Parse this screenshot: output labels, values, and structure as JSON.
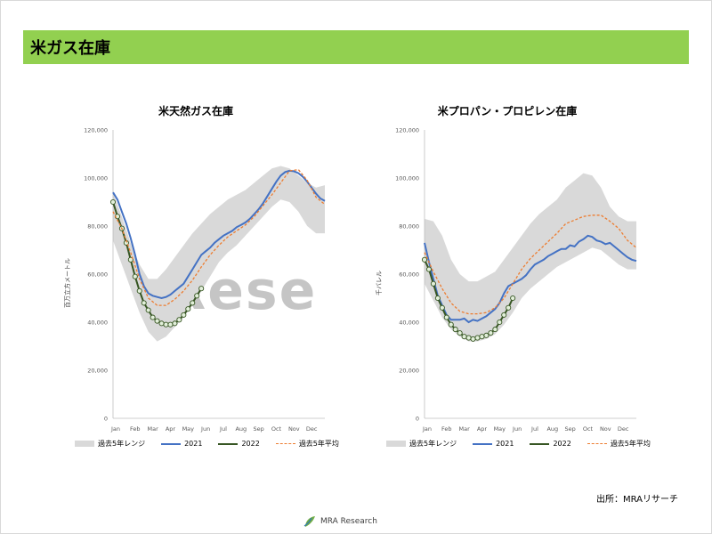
{
  "header": {
    "title": "米ガス在庫"
  },
  "watermark": {
    "text": "Rese"
  },
  "source": "出所：MRAリサーチ",
  "logo": {
    "text": "MRA Research"
  },
  "colors": {
    "header_bg": "#92d050",
    "band": "#d9d9d9",
    "s2021": "#4472c4",
    "s2022": "#375623",
    "avg": "#ed7d31"
  },
  "chart_data": [
    {
      "type": "line",
      "title": "米天然ガス在庫",
      "ylabel": "百万立方メートル",
      "ylim": [
        0,
        120000
      ],
      "yticks": [
        "0",
        "20,000",
        "40,000",
        "60,000",
        "80,000",
        "100,000",
        "120,000"
      ],
      "xticks": [
        "Jan",
        "Feb",
        "Mar",
        "Apr",
        "May",
        "Jun",
        "Jul",
        "Aug",
        "Sep",
        "Oct",
        "Nov",
        "Dec"
      ],
      "xlim": [
        1,
        13
      ],
      "legend": [
        "過去5年レンジ",
        "2021",
        "2022",
        "過去5年平均"
      ],
      "legend_position": "bottom",
      "series": [
        {
          "name": "過去5年レンジ",
          "kind": "band",
          "x": [
            1,
            1.5,
            2,
            2.5,
            3,
            3.5,
            4,
            4.5,
            5,
            5.5,
            6,
            6.5,
            7,
            7.5,
            8,
            8.5,
            9,
            9.5,
            10,
            10.5,
            11,
            11.5,
            12,
            12.5,
            13
          ],
          "low": [
            74000,
            64000,
            54000,
            44000,
            36000,
            32000,
            34000,
            38000,
            42000,
            47000,
            53000,
            59000,
            65000,
            69000,
            72000,
            76000,
            80000,
            84000,
            88000,
            91000,
            90000,
            86000,
            80000,
            77000,
            77000
          ],
          "high": [
            94000,
            84000,
            73000,
            64000,
            58000,
            58000,
            62000,
            67000,
            72000,
            77000,
            81000,
            85000,
            88000,
            91000,
            93000,
            95000,
            98000,
            101000,
            104000,
            105000,
            104000,
            101000,
            98000,
            96000,
            97000
          ]
        },
        {
          "name": "2021",
          "x": [
            1,
            1.25,
            1.5,
            1.75,
            2,
            2.25,
            2.5,
            2.75,
            3,
            3.25,
            3.5,
            3.75,
            4,
            4.25,
            4.5,
            4.75,
            5,
            5.25,
            5.5,
            5.75,
            6,
            6.25,
            6.5,
            6.75,
            7,
            7.25,
            7.5,
            7.75,
            8,
            8.25,
            8.5,
            8.75,
            9,
            9.25,
            9.5,
            9.75,
            10,
            10.25,
            10.5,
            10.75,
            11,
            11.25,
            11.5,
            11.75,
            12,
            12.25,
            12.5,
            12.75,
            13
          ],
          "values": [
            94000,
            91000,
            86000,
            81000,
            75000,
            68000,
            60000,
            55000,
            52000,
            51000,
            50500,
            50000,
            50500,
            51500,
            53000,
            54500,
            56000,
            59000,
            62000,
            65000,
            68000,
            69500,
            71000,
            73000,
            74500,
            76000,
            77000,
            78000,
            79500,
            80500,
            81500,
            83000,
            85000,
            87000,
            89500,
            92500,
            95500,
            98500,
            101000,
            102500,
            103000,
            102800,
            102000,
            100500,
            98500,
            96000,
            93500,
            91500,
            90500
          ]
        },
        {
          "name": "2022",
          "x": [
            1,
            1.25,
            1.5,
            1.75,
            2,
            2.25,
            2.5,
            2.75,
            3,
            3.25,
            3.5,
            3.75,
            4,
            4.25,
            4.5,
            4.75,
            5,
            5.25,
            5.5,
            5.75,
            6
          ],
          "values": [
            90000,
            84000,
            79000,
            73000,
            66000,
            59000,
            53000,
            48000,
            45000,
            42000,
            40500,
            39500,
            39000,
            39000,
            39500,
            41000,
            43000,
            45500,
            48000,
            51000,
            54000
          ]
        },
        {
          "name": "過去5年平均",
          "dashed": true,
          "x": [
            1,
            1.5,
            2,
            2.5,
            3,
            3.5,
            4,
            4.5,
            5,
            5.5,
            6,
            6.5,
            7,
            7.5,
            8,
            8.5,
            9,
            9.5,
            10,
            10.5,
            11,
            11.5,
            12,
            12.5,
            13
          ],
          "values": [
            86000,
            79000,
            69000,
            58000,
            50000,
            47000,
            47000,
            49500,
            53000,
            57500,
            63000,
            68000,
            72000,
            75500,
            78000,
            80500,
            84000,
            88500,
            93000,
            98000,
            103000,
            103500,
            99000,
            92000,
            89000
          ]
        }
      ]
    },
    {
      "type": "line",
      "title": "米プロパン・プロピレン在庫",
      "ylabel": "千バレル",
      "ylim": [
        0,
        120000
      ],
      "yticks": [
        "0",
        "20,000",
        "40,000",
        "60,000",
        "80,000",
        "100,000",
        "120,000"
      ],
      "xticks": [
        "Jan",
        "Feb",
        "Mar",
        "Apr",
        "May",
        "Jun",
        "Jul",
        "Aug",
        "Sep",
        "Oct",
        "Nov",
        "Dec"
      ],
      "xlim": [
        1,
        13
      ],
      "legend": [
        "過去5年レンジ",
        "2021",
        "2022",
        "過去5年平均"
      ],
      "legend_position": "bottom",
      "series": [
        {
          "name": "過去5年レンジ",
          "kind": "band",
          "x": [
            1,
            1.5,
            2,
            2.5,
            3,
            3.5,
            4,
            4.5,
            5,
            5.5,
            6,
            6.5,
            7,
            7.5,
            8,
            8.5,
            9,
            9.5,
            10,
            10.5,
            11,
            11.5,
            12,
            12.5,
            13
          ],
          "low": [
            56000,
            49000,
            42000,
            37000,
            34000,
            32000,
            32000,
            33000,
            35000,
            39000,
            44000,
            50000,
            54000,
            57000,
            60000,
            63000,
            65000,
            67000,
            69000,
            71000,
            70000,
            67000,
            64000,
            62000,
            62000
          ],
          "high": [
            83000,
            82000,
            76000,
            66000,
            60000,
            57000,
            57000,
            59000,
            61000,
            66000,
            71000,
            76000,
            81000,
            85000,
            88000,
            91000,
            96000,
            99000,
            102000,
            101000,
            96000,
            88000,
            84000,
            82000,
            82000
          ]
        },
        {
          "name": "2021",
          "x": [
            1,
            1.25,
            1.5,
            1.75,
            2,
            2.25,
            2.5,
            2.75,
            3,
            3.25,
            3.5,
            3.75,
            4,
            4.25,
            4.5,
            4.75,
            5,
            5.25,
            5.5,
            5.75,
            6,
            6.25,
            6.5,
            6.75,
            7,
            7.25,
            7.5,
            7.75,
            8,
            8.25,
            8.5,
            8.75,
            9,
            9.25,
            9.5,
            9.75,
            10,
            10.25,
            10.5,
            10.75,
            11,
            11.25,
            11.5,
            11.75,
            12,
            12.25,
            12.5,
            12.75,
            13
          ],
          "values": [
            73000,
            65000,
            58000,
            51000,
            47000,
            43000,
            41000,
            41000,
            41000,
            41500,
            40000,
            41000,
            40500,
            41500,
            42500,
            44000,
            45500,
            48000,
            52000,
            55000,
            56000,
            57000,
            58000,
            59500,
            62000,
            64000,
            65000,
            66000,
            67500,
            68500,
            69500,
            70500,
            70500,
            72000,
            71500,
            73500,
            74500,
            76000,
            75500,
            74000,
            73500,
            72500,
            73000,
            71500,
            70000,
            68500,
            67000,
            66000,
            65500
          ]
        },
        {
          "name": "2022",
          "x": [
            1,
            1.25,
            1.5,
            1.75,
            2,
            2.25,
            2.5,
            2.75,
            3,
            3.25,
            3.5,
            3.75,
            4,
            4.25,
            4.5,
            4.75,
            5,
            5.25,
            5.5,
            5.75,
            6
          ],
          "values": [
            66000,
            62000,
            56000,
            50000,
            46000,
            42000,
            39000,
            37000,
            35500,
            34000,
            33500,
            33000,
            33500,
            34000,
            34500,
            35500,
            37000,
            40000,
            43000,
            46000,
            50000
          ]
        },
        {
          "name": "過去5年平均",
          "dashed": true,
          "x": [
            1,
            1.5,
            2,
            2.5,
            3,
            3.5,
            4,
            4.5,
            5,
            5.5,
            6,
            6.5,
            7,
            7.5,
            8,
            8.5,
            9,
            9.5,
            10,
            10.5,
            11,
            11.5,
            12,
            12.5,
            13
          ],
          "values": [
            69000,
            61000,
            54000,
            48000,
            44500,
            43500,
            43500,
            44000,
            46000,
            50000,
            56000,
            62000,
            66500,
            70000,
            73500,
            77000,
            81000,
            82500,
            84000,
            84500,
            84500,
            82000,
            79000,
            74000,
            71000
          ]
        }
      ]
    }
  ]
}
